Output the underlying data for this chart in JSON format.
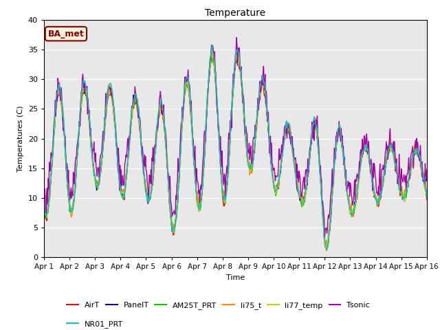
{
  "title": "Temperature",
  "xlabel": "Time",
  "ylabel": "Temperatures (C)",
  "ylim": [
    0,
    40
  ],
  "xlim_days": 15,
  "bg_color": "#e8e8e8",
  "annotation_text": "BA_met",
  "annotation_bg": "#f5f5dc",
  "annotation_border": "#8B0000",
  "annotation_text_color": "#8B0000",
  "series_order": [
    "AirT",
    "PanelT",
    "AM25T_PRT",
    "li75_t",
    "li77_temp",
    "Tsonic",
    "NR01_PRT"
  ],
  "series_colors": {
    "AirT": "#ff0000",
    "PanelT": "#000099",
    "AM25T_PRT": "#00cc00",
    "li75_t": "#ff8800",
    "li77_temp": "#cccc00",
    "Tsonic": "#aa00aa",
    "NR01_PRT": "#00cccc"
  },
  "xtick_labels": [
    "Apr 1",
    "Apr 2",
    "Apr 3",
    "Apr 4",
    "Apr 5",
    "Apr 6",
    "Apr 7",
    "Apr 8",
    "Apr 9",
    "Apr 10",
    "Apr 11",
    "Apr 12",
    "Apr 13",
    "Apr 14",
    "Apr 15",
    "Apr 16"
  ],
  "ytick_values": [
    0,
    5,
    10,
    15,
    20,
    25,
    30,
    35,
    40
  ],
  "legend_row1": [
    "AirT",
    "PanelT",
    "AM25T_PRT",
    "li75_t",
    "li77_temp",
    "Tsonic"
  ],
  "legend_row2": [
    "NR01_PRT"
  ]
}
